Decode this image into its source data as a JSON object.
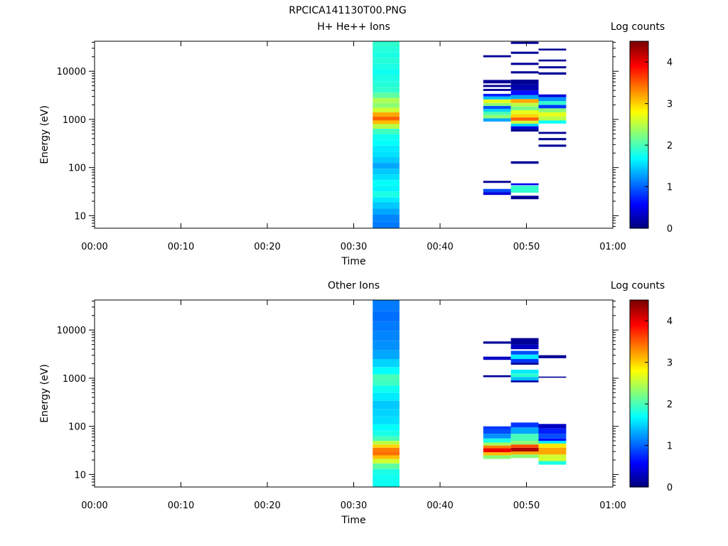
{
  "figure_title": "RPCICA141130T00.PNG",
  "colorbar": {
    "label": "Log counts",
    "ticks": [
      0,
      1,
      2,
      3,
      4
    ],
    "range": [
      0,
      4.5
    ],
    "colormap": "jet"
  },
  "chart_data": [
    {
      "type": "heatmap",
      "title": "H+ He++ Ions",
      "xlabel": "Time",
      "ylabel": "Energy (eV)",
      "x_ticks": [
        "00:00",
        "00:10",
        "00:20",
        "00:30",
        "00:40",
        "00:50",
        "01:00"
      ],
      "xlim_minutes": [
        0,
        60
      ],
      "y_scale": "log",
      "y_ticks": [
        10,
        100,
        1000,
        10000
      ],
      "ylim": [
        5.5,
        42000
      ],
      "z_label": "Log counts",
      "zlim": [
        0,
        4.5
      ],
      "columns": [
        {
          "t_start_min": 32.2,
          "t_end_min": 35.3,
          "bins": [
            {
              "e_lo": 5.5,
              "e_hi": 7.5,
              "value": 1.1
            },
            {
              "e_lo": 7.5,
              "e_hi": 10.5,
              "value": 1.15
            },
            {
              "e_lo": 10.5,
              "e_hi": 14,
              "value": 1.3
            },
            {
              "e_lo": 14,
              "e_hi": 19,
              "value": 1.45
            },
            {
              "e_lo": 19,
              "e_hi": 24,
              "value": 1.6
            },
            {
              "e_lo": 24,
              "e_hi": 32,
              "value": 1.8
            },
            {
              "e_lo": 32,
              "e_hi": 42,
              "value": 1.65
            },
            {
              "e_lo": 42,
              "e_hi": 55,
              "value": 1.7
            },
            {
              "e_lo": 55,
              "e_hi": 72,
              "value": 1.55
            },
            {
              "e_lo": 72,
              "e_hi": 95,
              "value": 1.45
            },
            {
              "e_lo": 95,
              "e_hi": 125,
              "value": 1.3
            },
            {
              "e_lo": 125,
              "e_hi": 165,
              "value": 1.45
            },
            {
              "e_lo": 165,
              "e_hi": 215,
              "value": 1.55
            },
            {
              "e_lo": 215,
              "e_hi": 285,
              "value": 1.6
            },
            {
              "e_lo": 285,
              "e_hi": 370,
              "value": 1.7
            },
            {
              "e_lo": 370,
              "e_hi": 490,
              "value": 1.75
            },
            {
              "e_lo": 490,
              "e_hi": 640,
              "value": 1.95
            },
            {
              "e_lo": 640,
              "e_hi": 800,
              "value": 2.5
            },
            {
              "e_lo": 800,
              "e_hi": 950,
              "value": 3.1
            },
            {
              "e_lo": 950,
              "e_hi": 1150,
              "value": 3.5
            },
            {
              "e_lo": 1150,
              "e_hi": 1400,
              "value": 3.2
            },
            {
              "e_lo": 1400,
              "e_hi": 1750,
              "value": 2.6
            },
            {
              "e_lo": 1750,
              "e_hi": 2200,
              "value": 2.3
            },
            {
              "e_lo": 2200,
              "e_hi": 2800,
              "value": 2.45
            },
            {
              "e_lo": 2800,
              "e_hi": 3600,
              "value": 2.1
            },
            {
              "e_lo": 3600,
              "e_hi": 4700,
              "value": 1.9
            },
            {
              "e_lo": 4700,
              "e_hi": 6200,
              "value": 1.85
            },
            {
              "e_lo": 6200,
              "e_hi": 8200,
              "value": 1.8
            },
            {
              "e_lo": 8200,
              "e_hi": 11000,
              "value": 1.75
            },
            {
              "e_lo": 11000,
              "e_hi": 14500,
              "value": 1.8
            },
            {
              "e_lo": 14500,
              "e_hi": 19000,
              "value": 1.85
            },
            {
              "e_lo": 19000,
              "e_hi": 25000,
              "value": 1.8
            },
            {
              "e_lo": 25000,
              "e_hi": 33000,
              "value": 1.85
            },
            {
              "e_lo": 33000,
              "e_hi": 42000,
              "value": 1.9
            }
          ]
        },
        {
          "t_start_min": 45.0,
          "t_end_min": 48.2,
          "bins": [
            {
              "e_lo": 27,
              "e_hi": 31,
              "value": 0.4
            },
            {
              "e_lo": 31,
              "e_hi": 36,
              "value": 0.9
            },
            {
              "e_lo": 48,
              "e_hi": 53,
              "value": 0.1
            },
            {
              "e_lo": 900,
              "e_hi": 1050,
              "value": 1.3
            },
            {
              "e_lo": 1050,
              "e_hi": 1250,
              "value": 2.3
            },
            {
              "e_lo": 1250,
              "e_hi": 1450,
              "value": 2.0
            },
            {
              "e_lo": 1450,
              "e_hi": 1650,
              "value": 1.5
            },
            {
              "e_lo": 1650,
              "e_hi": 1900,
              "value": 0.9
            },
            {
              "e_lo": 1900,
              "e_hi": 2200,
              "value": 2.3
            },
            {
              "e_lo": 2200,
              "e_hi": 2600,
              "value": 2.7
            },
            {
              "e_lo": 2600,
              "e_hi": 3000,
              "value": 1.4
            },
            {
              "e_lo": 3000,
              "e_hi": 3400,
              "value": 0.7
            },
            {
              "e_lo": 3900,
              "e_hi": 4300,
              "value": 0.1
            },
            {
              "e_lo": 4700,
              "e_hi": 5200,
              "value": 0.1
            },
            {
              "e_lo": 5600,
              "e_hi": 6600,
              "value": 0.1
            },
            {
              "e_lo": 19500,
              "e_hi": 21500,
              "value": 0.1
            }
          ]
        },
        {
          "t_start_min": 48.2,
          "t_end_min": 51.4,
          "bins": [
            {
              "e_lo": 22,
              "e_hi": 26,
              "value": 0.1
            },
            {
              "e_lo": 30,
              "e_hi": 42,
              "value": 1.9
            },
            {
              "e_lo": 43,
              "e_hi": 47,
              "value": 0.5
            },
            {
              "e_lo": 120,
              "e_hi": 135,
              "value": 0.1
            },
            {
              "e_lo": 560,
              "e_hi": 640,
              "value": 0.1
            },
            {
              "e_lo": 640,
              "e_hi": 720,
              "value": 0.4
            },
            {
              "e_lo": 720,
              "e_hi": 820,
              "value": 1.5
            },
            {
              "e_lo": 820,
              "e_hi": 940,
              "value": 2.6
            },
            {
              "e_lo": 940,
              "e_hi": 1100,
              "value": 3.5
            },
            {
              "e_lo": 1100,
              "e_hi": 1300,
              "value": 3.0
            },
            {
              "e_lo": 1300,
              "e_hi": 1550,
              "value": 2.7
            },
            {
              "e_lo": 1550,
              "e_hi": 1850,
              "value": 2.2
            },
            {
              "e_lo": 1850,
              "e_hi": 2200,
              "value": 2.5
            },
            {
              "e_lo": 2200,
              "e_hi": 2650,
              "value": 3.2
            },
            {
              "e_lo": 2650,
              "e_hi": 3200,
              "value": 1.3
            },
            {
              "e_lo": 3200,
              "e_hi": 4000,
              "value": 0.6
            },
            {
              "e_lo": 4000,
              "e_hi": 5300,
              "value": 0.2
            },
            {
              "e_lo": 5300,
              "e_hi": 6700,
              "value": 0.1
            },
            {
              "e_lo": 9000,
              "e_hi": 10000,
              "value": 0.1
            },
            {
              "e_lo": 13500,
              "e_hi": 15000,
              "value": 0.1
            },
            {
              "e_lo": 23000,
              "e_hi": 25500,
              "value": 0.1
            },
            {
              "e_lo": 37000,
              "e_hi": 41000,
              "value": 0.1
            }
          ]
        },
        {
          "t_start_min": 51.4,
          "t_end_min": 54.6,
          "bins": [
            {
              "e_lo": 270,
              "e_hi": 300,
              "value": 0.1
            },
            {
              "e_lo": 370,
              "e_hi": 410,
              "value": 0.1
            },
            {
              "e_lo": 500,
              "e_hi": 550,
              "value": 0.1
            },
            {
              "e_lo": 820,
              "e_hi": 950,
              "value": 1.7
            },
            {
              "e_lo": 950,
              "e_hi": 1150,
              "value": 2.5
            },
            {
              "e_lo": 1150,
              "e_hi": 1400,
              "value": 2.7
            },
            {
              "e_lo": 1400,
              "e_hi": 1700,
              "value": 2.3
            },
            {
              "e_lo": 1700,
              "e_hi": 2000,
              "value": 0.8
            },
            {
              "e_lo": 2000,
              "e_hi": 2400,
              "value": 1.9
            },
            {
              "e_lo": 2400,
              "e_hi": 2900,
              "value": 1.2
            },
            {
              "e_lo": 2900,
              "e_hi": 3300,
              "value": 0.4
            },
            {
              "e_lo": 8500,
              "e_hi": 9500,
              "value": 0.1
            },
            {
              "e_lo": 11500,
              "e_hi": 12700,
              "value": 0.1
            },
            {
              "e_lo": 16000,
              "e_hi": 17500,
              "value": 0.1
            },
            {
              "e_lo": 27000,
              "e_hi": 29500,
              "value": 0.1
            }
          ]
        }
      ]
    },
    {
      "type": "heatmap",
      "title": "Other Ions",
      "xlabel": "Time",
      "ylabel": "Energy (eV)",
      "x_ticks": [
        "00:00",
        "00:10",
        "00:20",
        "00:30",
        "00:40",
        "00:50",
        "01:00"
      ],
      "xlim_minutes": [
        0,
        60
      ],
      "y_scale": "log",
      "y_ticks": [
        10,
        100,
        1000,
        10000
      ],
      "ylim": [
        5.5,
        42000
      ],
      "z_label": "Log counts",
      "zlim": [
        0,
        4.5
      ],
      "columns": [
        {
          "t_start_min": 32.2,
          "t_end_min": 35.3,
          "bins": [
            {
              "e_lo": 5.5,
              "e_hi": 10,
              "value": 1.75
            },
            {
              "e_lo": 10,
              "e_hi": 13,
              "value": 1.8
            },
            {
              "e_lo": 13,
              "e_hi": 17,
              "value": 2.1
            },
            {
              "e_lo": 17,
              "e_hi": 21,
              "value": 2.6
            },
            {
              "e_lo": 21,
              "e_hi": 25,
              "value": 3.1
            },
            {
              "e_lo": 25,
              "e_hi": 30,
              "value": 3.45
            },
            {
              "e_lo": 30,
              "e_hi": 36,
              "value": 3.4
            },
            {
              "e_lo": 36,
              "e_hi": 42,
              "value": 3.0
            },
            {
              "e_lo": 42,
              "e_hi": 50,
              "value": 2.5
            },
            {
              "e_lo": 50,
              "e_hi": 62,
              "value": 2.0
            },
            {
              "e_lo": 62,
              "e_hi": 80,
              "value": 1.8
            },
            {
              "e_lo": 80,
              "e_hi": 110,
              "value": 1.7
            },
            {
              "e_lo": 110,
              "e_hi": 160,
              "value": 1.55
            },
            {
              "e_lo": 160,
              "e_hi": 230,
              "value": 1.5
            },
            {
              "e_lo": 230,
              "e_hi": 340,
              "value": 1.45
            },
            {
              "e_lo": 340,
              "e_hi": 500,
              "value": 1.6
            },
            {
              "e_lo": 500,
              "e_hi": 700,
              "value": 1.75
            },
            {
              "e_lo": 700,
              "e_hi": 900,
              "value": 1.95
            },
            {
              "e_lo": 900,
              "e_hi": 1200,
              "value": 2.0
            },
            {
              "e_lo": 1200,
              "e_hi": 1700,
              "value": 1.7
            },
            {
              "e_lo": 1700,
              "e_hi": 2500,
              "value": 1.5
            },
            {
              "e_lo": 2500,
              "e_hi": 3800,
              "value": 1.3
            },
            {
              "e_lo": 3800,
              "e_hi": 6000,
              "value": 1.2
            },
            {
              "e_lo": 6000,
              "e_hi": 9500,
              "value": 1.15
            },
            {
              "e_lo": 9500,
              "e_hi": 15000,
              "value": 1.1
            },
            {
              "e_lo": 15000,
              "e_hi": 25000,
              "value": 1.05
            },
            {
              "e_lo": 25000,
              "e_hi": 42000,
              "value": 1.1
            }
          ]
        },
        {
          "t_start_min": 45.0,
          "t_end_min": 48.2,
          "bins": [
            {
              "e_lo": 21,
              "e_hi": 25,
              "value": 2.3
            },
            {
              "e_lo": 25,
              "e_hi": 29,
              "value": 3.1
            },
            {
              "e_lo": 29,
              "e_hi": 35,
              "value": 4.0
            },
            {
              "e_lo": 35,
              "e_hi": 40,
              "value": 3.4
            },
            {
              "e_lo": 40,
              "e_hi": 46,
              "value": 2.4
            },
            {
              "e_lo": 46,
              "e_hi": 56,
              "value": 1.8
            },
            {
              "e_lo": 56,
              "e_hi": 70,
              "value": 1.2
            },
            {
              "e_lo": 70,
              "e_hi": 85,
              "value": 0.9
            },
            {
              "e_lo": 85,
              "e_hi": 100,
              "value": 0.8
            },
            {
              "e_lo": 1050,
              "e_hi": 1150,
              "value": 0.1
            },
            {
              "e_lo": 2400,
              "e_hi": 2800,
              "value": 0.3
            },
            {
              "e_lo": 5200,
              "e_hi": 5800,
              "value": 0.1
            }
          ]
        },
        {
          "t_start_min": 48.2,
          "t_end_min": 51.4,
          "bins": [
            {
              "e_lo": 22,
              "e_hi": 26,
              "value": 2.3
            },
            {
              "e_lo": 26,
              "e_hi": 30,
              "value": 3.2
            },
            {
              "e_lo": 30,
              "e_hi": 36,
              "value": 4.3
            },
            {
              "e_lo": 36,
              "e_hi": 42,
              "value": 3.6
            },
            {
              "e_lo": 42,
              "e_hi": 50,
              "value": 2.3
            },
            {
              "e_lo": 50,
              "e_hi": 70,
              "value": 2.0
            },
            {
              "e_lo": 70,
              "e_hi": 95,
              "value": 1.3
            },
            {
              "e_lo": 95,
              "e_hi": 120,
              "value": 0.8
            },
            {
              "e_lo": 820,
              "e_hi": 900,
              "value": 0.2
            },
            {
              "e_lo": 900,
              "e_hi": 1050,
              "value": 1.4
            },
            {
              "e_lo": 1050,
              "e_hi": 1250,
              "value": 1.9
            },
            {
              "e_lo": 1250,
              "e_hi": 1500,
              "value": 1.6
            },
            {
              "e_lo": 1900,
              "e_hi": 2100,
              "value": 0.1
            },
            {
              "e_lo": 2100,
              "e_hi": 2500,
              "value": 0.8
            },
            {
              "e_lo": 2500,
              "e_hi": 3100,
              "value": 1.6
            },
            {
              "e_lo": 3100,
              "e_hi": 3700,
              "value": 0.9
            },
            {
              "e_lo": 4000,
              "e_hi": 5000,
              "value": 0.3
            },
            {
              "e_lo": 5000,
              "e_hi": 6800,
              "value": 0.1
            }
          ]
        },
        {
          "t_start_min": 51.4,
          "t_end_min": 54.6,
          "bins": [
            {
              "e_lo": 16,
              "e_hi": 19,
              "value": 1.8
            },
            {
              "e_lo": 19,
              "e_hi": 26,
              "value": 2.6
            },
            {
              "e_lo": 26,
              "e_hi": 36,
              "value": 3.2
            },
            {
              "e_lo": 36,
              "e_hi": 44,
              "value": 2.9
            },
            {
              "e_lo": 44,
              "e_hi": 50,
              "value": 1.6
            },
            {
              "e_lo": 50,
              "e_hi": 56,
              "value": 0.6
            },
            {
              "e_lo": 56,
              "e_hi": 70,
              "value": 0.9
            },
            {
              "e_lo": 70,
              "e_hi": 90,
              "value": 0.7
            },
            {
              "e_lo": 90,
              "e_hi": 112,
              "value": 0.3
            },
            {
              "e_lo": 1020,
              "e_hi": 1080,
              "value": 0.1
            },
            {
              "e_lo": 2600,
              "e_hi": 3000,
              "value": 0.1
            }
          ]
        }
      ]
    }
  ]
}
